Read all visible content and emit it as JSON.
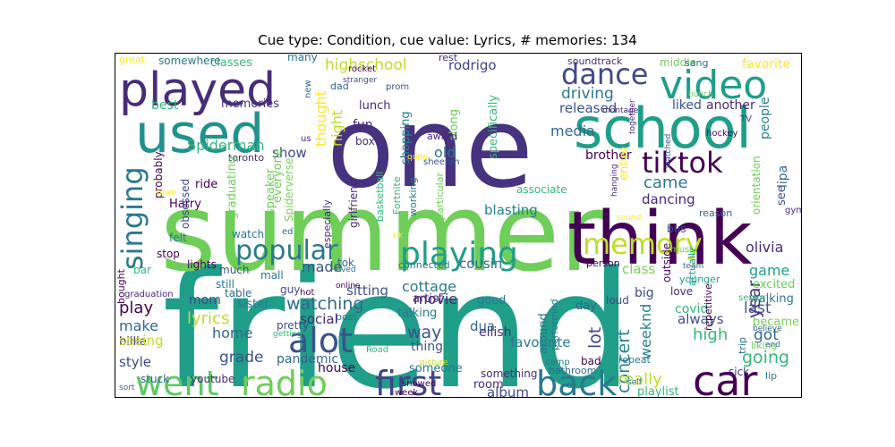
{
  "title": "Cue type: Condition, cue value: Lyrics, # memories: 134",
  "words": [
    {
      "text": "friend",
      "color": "#1f9e89"
    },
    {
      "text": "summer",
      "color": "#6ece58"
    },
    {
      "text": "one",
      "color": "#46327e"
    },
    {
      "text": "think",
      "color": "#440154"
    },
    {
      "text": "school",
      "color": "#1f9e89"
    },
    {
      "text": "used",
      "color": "#21918c"
    },
    {
      "text": "played",
      "color": "#472c7a"
    },
    {
      "text": "video",
      "color": "#1f9e89"
    },
    {
      "text": "dance",
      "color": "#3e4a89"
    },
    {
      "text": "tiktok",
      "color": "#440154"
    },
    {
      "text": "playing",
      "color": "#1f9e89"
    },
    {
      "text": "popular",
      "color": "#2a788e"
    },
    {
      "text": "memory",
      "color": "#bddf26"
    },
    {
      "text": "singing",
      "color": "#2a788e"
    },
    {
      "text": "went",
      "color": "#5ec962"
    },
    {
      "text": "radio",
      "color": "#6ece58"
    },
    {
      "text": "alot",
      "color": "#3b528b"
    },
    {
      "text": "first",
      "color": "#414487"
    },
    {
      "text": "back",
      "color": "#2a788e"
    },
    {
      "text": "car",
      "color": "#440154"
    },
    {
      "text": "rodrigo",
      "color": "#404387"
    },
    {
      "text": "highschool",
      "color": "#bddf26"
    },
    {
      "text": "driving",
      "color": "#2a788e"
    },
    {
      "text": "Spiderman",
      "color": "#35b779"
    },
    {
      "text": "media",
      "color": "#31688e"
    },
    {
      "text": "liked",
      "color": "#3b528b"
    },
    {
      "text": "came",
      "color": "#2a788e"
    },
    {
      "text": "dancing",
      "color": "#482878"
    },
    {
      "text": "olivia",
      "color": "#472c7a"
    },
    {
      "text": "watching",
      "color": "#31688e"
    },
    {
      "text": "lyrics",
      "color": "#bddf26"
    },
    {
      "text": "play",
      "color": "#440154"
    },
    {
      "text": "made",
      "color": "#3b528b"
    },
    {
      "text": "movie",
      "color": "#482878"
    },
    {
      "text": "cottage",
      "color": "#2a788e"
    },
    {
      "text": "concert",
      "color": "#26828e"
    },
    {
      "text": "lot",
      "color": "#3e4a89"
    },
    {
      "text": "way",
      "color": "#3b528b"
    },
    {
      "text": "favourite",
      "color": "#2a788e"
    },
    {
      "text": "album",
      "color": "#3e4a89"
    },
    {
      "text": "really",
      "color": "#bddf26"
    },
    {
      "text": "high",
      "color": "#35b779"
    },
    {
      "text": "going",
      "color": "#35b779"
    },
    {
      "text": "got",
      "color": "#31688e"
    },
    {
      "text": "year",
      "color": "#482878"
    },
    {
      "text": "last",
      "color": "#3b528b"
    },
    {
      "text": "grade",
      "color": "#3b528b"
    },
    {
      "text": "home",
      "color": "#31688e"
    },
    {
      "text": "make",
      "color": "#31688e"
    },
    {
      "text": "mom",
      "color": "#3e4a89"
    },
    {
      "text": "social",
      "color": "#482878"
    },
    {
      "text": "pandemic",
      "color": "#31688e"
    },
    {
      "text": "weeknd",
      "color": "#26828e"
    },
    {
      "text": "game",
      "color": "#1fa187"
    },
    {
      "text": "class",
      "color": "#7ad151"
    },
    {
      "text": "big",
      "color": "#3e4a89"
    },
    {
      "text": "blasting",
      "color": "#26828e"
    },
    {
      "text": "old",
      "color": "#2a788e"
    },
    {
      "text": "show",
      "color": "#3e4a89"
    },
    {
      "text": "night",
      "color": "#bddf26"
    },
    {
      "text": "thought",
      "color": "#fde725"
    },
    {
      "text": "fun",
      "color": "#482878"
    },
    {
      "text": "lunch",
      "color": "#472c7a"
    },
    {
      "text": "memories",
      "color": "#46337f"
    },
    {
      "text": "best",
      "color": "#35b779"
    },
    {
      "text": "classes",
      "color": "#35b779"
    },
    {
      "text": "somewhere",
      "color": "#2a788e"
    },
    {
      "text": "great",
      "color": "#fde725"
    },
    {
      "text": "many",
      "color": "#2a788e"
    },
    {
      "text": "rest",
      "color": "#482878"
    },
    {
      "text": "soundtrack",
      "color": "#472c7a"
    },
    {
      "text": "middle",
      "color": "#6ece58"
    },
    {
      "text": "sang",
      "color": "#31688e"
    },
    {
      "text": "favorite",
      "color": "#fde725"
    },
    {
      "text": "released",
      "color": "#3b528b"
    },
    {
      "text": "another",
      "color": "#482878"
    },
    {
      "text": "people",
      "color": "#26828e"
    },
    {
      "text": "TV",
      "color": "#404387"
    },
    {
      "text": "brother",
      "color": "#440154"
    },
    {
      "text": "entire",
      "color": "#fde725"
    },
    {
      "text": "specifically",
      "color": "#35b779"
    },
    {
      "text": "along",
      "color": "#6ece58"
    },
    {
      "text": "shopping",
      "color": "#26828e"
    },
    {
      "text": "award",
      "color": "#482878"
    },
    {
      "text": "box",
      "color": "#472c7a"
    },
    {
      "text": "us",
      "color": "#472c7a"
    },
    {
      "text": "toronto",
      "color": "#472c7a"
    },
    {
      "text": "ride",
      "color": "#440154"
    },
    {
      "text": "Harry",
      "color": "#440154"
    },
    {
      "text": "graduating",
      "color": "#6ece58"
    },
    {
      "text": "speaker",
      "color": "#6ece58"
    },
    {
      "text": "Spiderverse",
      "color": "#7ad151"
    },
    {
      "text": "everyone",
      "color": "#6ece58"
    },
    {
      "text": "girlfriend",
      "color": "#482878"
    },
    {
      "text": "basketball",
      "color": "#35b779"
    },
    {
      "text": "Fortnite",
      "color": "#35b779"
    },
    {
      "text": "working",
      "color": "#2a788e"
    },
    {
      "text": "particular",
      "color": "#6ece58"
    },
    {
      "text": "sheeran",
      "color": "#3b528b"
    },
    {
      "text": "especially",
      "color": "#482878"
    },
    {
      "text": "connected",
      "color": "#2a788e"
    },
    {
      "text": "cousin",
      "color": "#31688e"
    },
    {
      "text": "sitting",
      "color": "#3b528b"
    },
    {
      "text": "dua",
      "color": "#31688e"
    },
    {
      "text": "lipa",
      "color": "#31688e"
    },
    {
      "text": "see",
      "color": "#3b528b"
    },
    {
      "text": "bus",
      "color": "#3b528b"
    },
    {
      "text": "reason",
      "color": "#31688e"
    },
    {
      "text": "orientation",
      "color": "#6ece58"
    },
    {
      "text": "gym",
      "color": "#472c7a"
    },
    {
      "text": "walking",
      "color": "#2a788e"
    },
    {
      "text": "excited",
      "color": "#6ece58"
    },
    {
      "text": "became",
      "color": "#7ad151"
    },
    {
      "text": "love",
      "color": "#482878"
    },
    {
      "text": "loud",
      "color": "#3e4a89"
    },
    {
      "text": "person",
      "color": "#440154"
    },
    {
      "text": "artist",
      "color": "#472c7a"
    },
    {
      "text": "talking",
      "color": "#2a788e"
    },
    {
      "text": "good",
      "color": "#2a788e"
    },
    {
      "text": "thing",
      "color": "#3b528b"
    },
    {
      "text": "eilish",
      "color": "#472c7a"
    },
    {
      "text": "billie",
      "color": "#472c7a"
    },
    {
      "text": "seeing",
      "color": "#bddf26"
    },
    {
      "text": "style",
      "color": "#3e4a89"
    },
    {
      "text": "stuck",
      "color": "#31688e"
    },
    {
      "text": "youtube",
      "color": "#472c7a"
    },
    {
      "text": "house",
      "color": "#440154"
    },
    {
      "text": "someone",
      "color": "#2a788e"
    },
    {
      "text": "room",
      "color": "#472c7a"
    },
    {
      "text": "something",
      "color": "#472c7a"
    },
    {
      "text": "playlist",
      "color": "#35b779"
    },
    {
      "text": "repeat",
      "color": "#2a788e"
    },
    {
      "text": "sick",
      "color": "#482878"
    },
    {
      "text": "trip",
      "color": "#2a788e"
    },
    {
      "text": "liking",
      "color": "#6ece58"
    },
    {
      "text": "always",
      "color": "#3b528b"
    },
    {
      "text": "day",
      "color": "#31688e"
    },
    {
      "text": "covid",
      "color": "#35b779"
    },
    {
      "text": "around",
      "color": "#2a788e"
    },
    {
      "text": "performed",
      "color": "#2a788e"
    },
    {
      "text": "bad",
      "color": "#440154"
    },
    {
      "text": "bathroom",
      "color": "#31688e"
    },
    {
      "text": "guy",
      "color": "#3e4a89"
    },
    {
      "text": "mall",
      "color": "#2a788e"
    },
    {
      "text": "still",
      "color": "#2a788e"
    },
    {
      "text": "lights",
      "color": "#440154"
    },
    {
      "text": "much",
      "color": "#3b528b"
    },
    {
      "text": "bar",
      "color": "#35b779"
    },
    {
      "text": "table",
      "color": "#31688e"
    },
    {
      "text": "pretty",
      "color": "#3b528b"
    },
    {
      "text": "sister",
      "color": "#2a788e"
    },
    {
      "text": "felt",
      "color": "#2a788e"
    },
    {
      "text": "stop",
      "color": "#440154"
    },
    {
      "text": "watch",
      "color": "#2a788e"
    },
    {
      "text": "tok",
      "color": "#31688e"
    },
    {
      "text": "post",
      "color": "#2a788e"
    },
    {
      "text": "probably",
      "color": "#440154"
    },
    {
      "text": "obsessed",
      "color": "#3e4a89"
    },
    {
      "text": "dad",
      "color": "#31688e"
    },
    {
      "text": "new",
      "color": "#31688e"
    },
    {
      "text": "rocket",
      "color": "#440154"
    },
    {
      "text": "stranger",
      "color": "#3b528b"
    },
    {
      "text": "prom",
      "color": "#3b528b"
    },
    {
      "text": "must",
      "color": "#6ece58"
    },
    {
      "text": "younger",
      "color": "#1fa187"
    },
    {
      "text": "outside",
      "color": "#440154"
    },
    {
      "text": "actually",
      "color": "#1fa187"
    },
    {
      "text": "hockey",
      "color": "#440154"
    },
    {
      "text": "montage",
      "color": "#482878"
    },
    {
      "text": "bunch",
      "color": "#6ece58"
    },
    {
      "text": "together",
      "color": "#472c7a"
    },
    {
      "text": "hanging",
      "color": "#482878"
    },
    {
      "text": "quite",
      "color": "#fde725"
    },
    {
      "text": "tik",
      "color": "#fde725"
    },
    {
      "text": "sound",
      "color": "#fde725"
    },
    {
      "text": "team",
      "color": "#31688e"
    },
    {
      "text": "senior",
      "color": "#35b779"
    },
    {
      "text": "believe",
      "color": "#31688e"
    },
    {
      "text": "end",
      "color": "#2a788e"
    },
    {
      "text": "self",
      "color": "#2a788e"
    },
    {
      "text": "camp",
      "color": "#2a788e"
    },
    {
      "text": "showed",
      "color": "#440154"
    },
    {
      "text": "week",
      "color": "#440154"
    },
    {
      "text": "picture",
      "color": "#bddf26"
    },
    {
      "text": "Road",
      "color": "#35b779"
    },
    {
      "text": "getting",
      "color": "#35b779"
    },
    {
      "text": "online",
      "color": "#440154"
    },
    {
      "text": "loved",
      "color": "#2a788e"
    },
    {
      "text": "hot",
      "color": "#440154"
    },
    {
      "text": "graduation",
      "color": "#482878"
    },
    {
      "text": "sort",
      "color": "#31688e"
    },
    {
      "text": "ed",
      "color": "#31688e"
    },
    {
      "text": "associate",
      "color": "#35b779"
    },
    {
      "text": "repetitive",
      "color": "#440154"
    },
    {
      "text": "town",
      "color": "#fde725"
    },
    {
      "text": "lip",
      "color": "#2a788e"
    },
    {
      "text": "bought",
      "color": "#440154"
    },
    {
      "text": "watched",
      "color": "#3b528b"
    }
  ]
}
